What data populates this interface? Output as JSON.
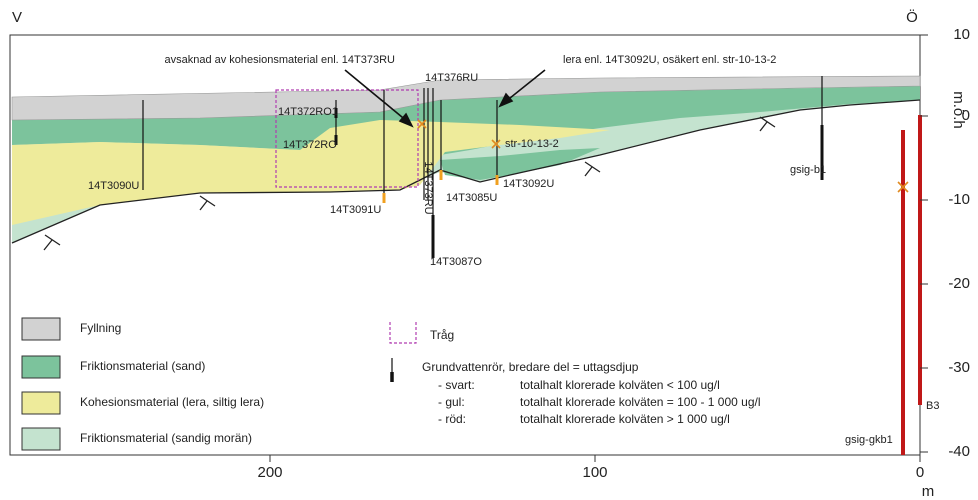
{
  "header": {
    "left": "V",
    "right": "Ö"
  },
  "axes": {
    "y_label": "m.ö.h",
    "y_ticks": [
      10,
      0,
      -10,
      -20,
      -30,
      -40
    ],
    "x_ticks": [
      200,
      100,
      0
    ],
    "x_label": "m"
  },
  "annotations": {
    "cohesion_missing": "avsaknad av kohesionsmaterial enl. 14T373RU",
    "clay": "lera enl. 14T3092U, osäkert enl. str-10-13-2"
  },
  "boreholes": [
    "14T3090U",
    "14T372RO1",
    "14T372RO",
    "14T3091U",
    "14T376RU",
    "14T373RU",
    "14T3087O",
    "14T3085U",
    "14T3092U",
    "str-10-13-2",
    "gsig-b1",
    "gsig-gkb1",
    "B3"
  ],
  "legend": {
    "layers": [
      "Fyllning",
      "Friktionsmaterial (sand)",
      "Kohesionsmaterial (lera, siltig lera)",
      "Friktionsmaterial (sandig morän)"
    ],
    "trough": "Tråg",
    "well_title": "Grundvattenrör, bredare del = uttagsdjup",
    "well_items": [
      {
        "key": "- svart:",
        "text": "totalhalt klorerade kolväten < 100 ug/l"
      },
      {
        "key": "- gul:",
        "text": "totalhalt klorerade kolväten = 100 - 1 000 ug/l"
      },
      {
        "key": "- röd:",
        "text": "totalhalt klorerade kolväten > 1 000 ug/l"
      }
    ]
  }
}
